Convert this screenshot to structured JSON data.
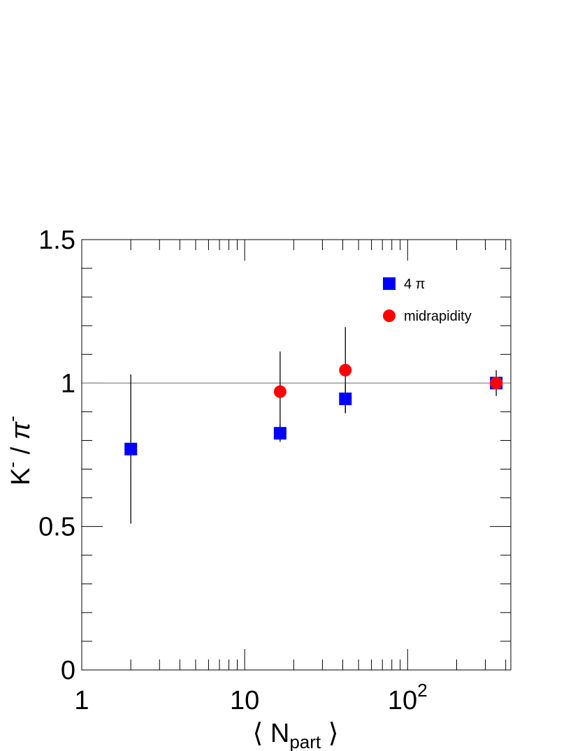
{
  "chart_data": {
    "type": "scatter",
    "xscale": "log",
    "xlim": [
      1,
      430
    ],
    "ylim": [
      0,
      1.5
    ],
    "grid": false,
    "reference_line_y": 1,
    "legend_position": "top-right",
    "xlabel": {
      "prefix": "⟨ N",
      "sub": "part",
      "suffix": " ⟩"
    },
    "ylabel": {
      "k": "K",
      "k_sup": "-",
      "slash": " / ",
      "pi": "π",
      "pi_sup": "-"
    },
    "x_ticks": [
      {
        "value": 1,
        "label": "1",
        "exp": ""
      },
      {
        "value": 10,
        "label": "10",
        "exp": ""
      },
      {
        "value": 100,
        "label": "10",
        "exp": "2"
      }
    ],
    "y_ticks": [
      {
        "value": 0,
        "label": "0"
      },
      {
        "value": 0.5,
        "label": "0.5"
      },
      {
        "value": 1,
        "label": "1"
      },
      {
        "value": 1.5,
        "label": "1.5"
      }
    ],
    "series": [
      {
        "name": "4 π",
        "marker": "square",
        "color": "#0000ff",
        "points": [
          {
            "x": 2,
            "y": 0.77,
            "err": 0.26
          },
          {
            "x": 16.5,
            "y": 0.825,
            "err": 0.03
          },
          {
            "x": 41.5,
            "y": 0.945,
            "err": 0.05
          },
          {
            "x": 350,
            "y": 1.0,
            "err": 0.045
          }
        ]
      },
      {
        "name": "midrapidity",
        "marker": "circle",
        "color": "#ff0000",
        "points": [
          {
            "x": 16.5,
            "y": 0.97,
            "err": 0.14
          },
          {
            "x": 41.5,
            "y": 1.045,
            "err": 0.15
          },
          {
            "x": 350,
            "y": 1.0,
            "err": 0.0
          }
        ]
      }
    ]
  }
}
